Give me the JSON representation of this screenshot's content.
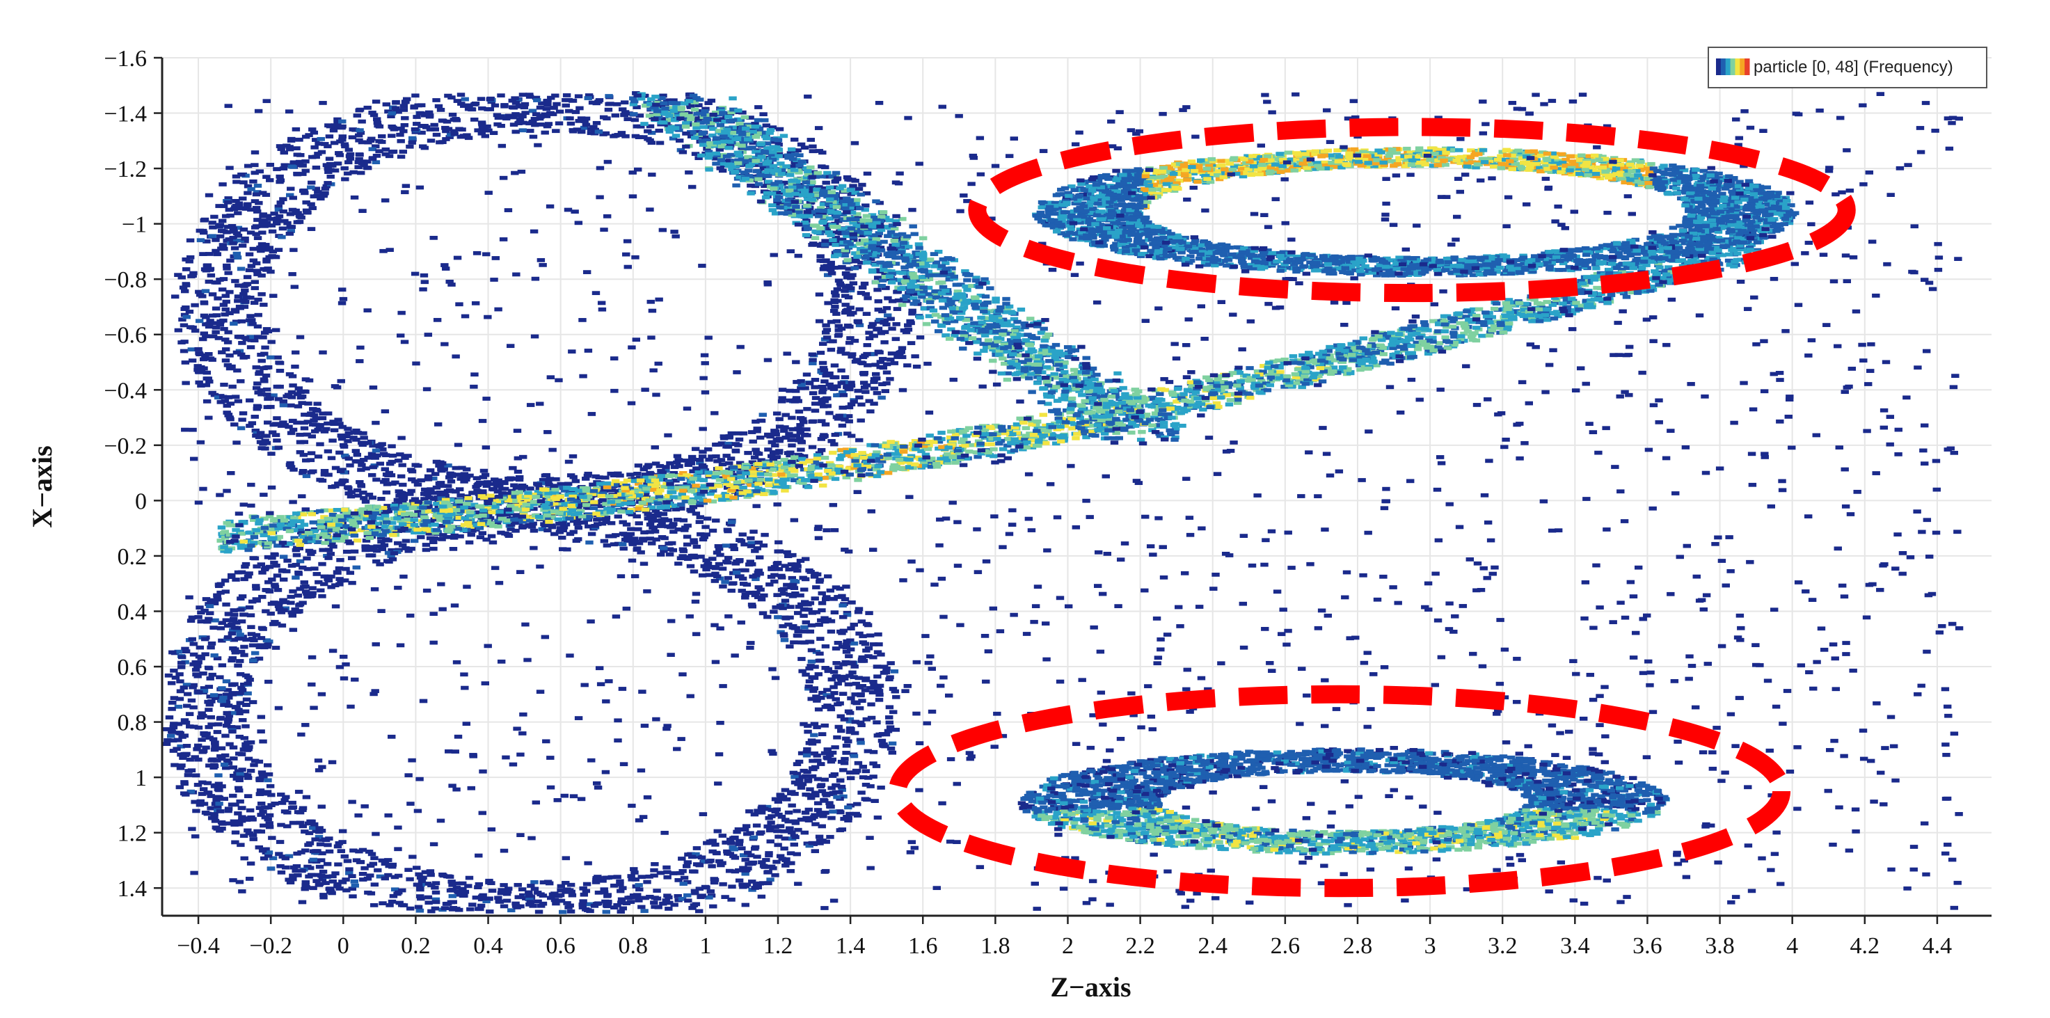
{
  "chart_data": {
    "type": "heatmap",
    "title": "",
    "xlabel": "Z−axis",
    "ylabel": "X−axis",
    "xlim": [
      -0.5,
      4.55
    ],
    "ylim": [
      -1.6,
      1.5
    ],
    "y_inverted": true,
    "x_ticks": [
      "−0.4",
      "−0.2",
      "0",
      "0.2",
      "0.4",
      "0.6",
      "0.8",
      "1",
      "1.2",
      "1.4",
      "1.6",
      "1.8",
      "2",
      "2.2",
      "2.4",
      "2.6",
      "2.8",
      "3",
      "3.2",
      "3.4",
      "3.6",
      "3.8",
      "4",
      "4.2",
      "4.4"
    ],
    "x_tick_values": [
      -0.4,
      -0.2,
      0,
      0.2,
      0.4,
      0.6,
      0.8,
      1,
      1.2,
      1.4,
      1.6,
      1.8,
      2,
      2.2,
      2.4,
      2.6,
      2.8,
      3,
      3.2,
      3.4,
      3.6,
      3.8,
      4,
      4.2,
      4.4
    ],
    "y_ticks": [
      "−1.6",
      "−1.4",
      "−1.2",
      "−1",
      "−0.8",
      "−0.6",
      "−0.4",
      "−0.2",
      "0",
      "0.2",
      "0.4",
      "0.6",
      "0.8",
      "1",
      "1.2",
      "1.4"
    ],
    "y_tick_values": [
      -1.6,
      -1.4,
      -1.2,
      -1,
      -0.8,
      -0.6,
      -0.4,
      -0.2,
      0,
      0.2,
      0.4,
      0.6,
      0.8,
      1,
      1.2,
      1.4
    ],
    "grid": true,
    "legend": {
      "label": "particle [0, 48] (Frequency)",
      "placement": "top-right"
    },
    "colorscale": [
      "#1a2a8c",
      "#1f5fb0",
      "#2aa3c8",
      "#7fd1a0",
      "#f2e443",
      "#f5a623",
      "#e8402a"
    ],
    "value_range": [
      0,
      48
    ],
    "density_structures": [
      {
        "name": "upper-lobe",
        "center": [
          2.9,
          -1.05
        ],
        "radii": [
          1.05,
          0.22
        ],
        "peak": 44
      },
      {
        "name": "lower-lobe",
        "center": [
          2.8,
          1.15
        ],
        "radii": [
          0.85,
          0.14
        ],
        "peak": 30
      },
      {
        "name": "left-upper-loop",
        "center": [
          0.55,
          -0.75
        ],
        "radii": [
          0.95,
          0.72
        ],
        "peak": 8
      },
      {
        "name": "left-lower-loop",
        "center": [
          0.55,
          0.75
        ],
        "radii": [
          0.95,
          0.72
        ],
        "peak": 8
      },
      {
        "name": "central-band",
        "from": [
          -0.3,
          0.1
        ],
        "to": [
          3.9,
          -0.95
        ],
        "peak": 40
      }
    ],
    "annotations": [
      {
        "shape": "ellipse",
        "style": "red dashed",
        "center": [
          2.95,
          -1.05
        ],
        "radii": [
          1.2,
          0.3
        ]
      },
      {
        "shape": "ellipse",
        "style": "red dashed",
        "center": [
          2.75,
          1.05
        ],
        "radii": [
          1.22,
          0.35
        ]
      }
    ]
  }
}
